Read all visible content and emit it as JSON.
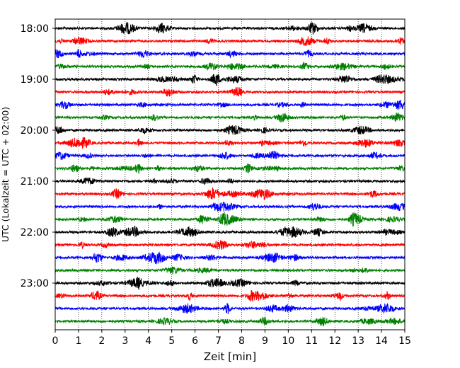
{
  "chart_data": {
    "type": "line",
    "title": "",
    "xlabel": "Zeit  [min]",
    "ylabel": "UTC (Lokalzeit = UTC + 02:00)",
    "xlim": [
      0,
      15
    ],
    "xticks": [
      0,
      1,
      2,
      3,
      4,
      5,
      6,
      7,
      8,
      9,
      10,
      11,
      12,
      13,
      14,
      15
    ],
    "ytick_labels": [
      "18:00",
      "19:00",
      "20:00",
      "21:00",
      "22:00",
      "23:00"
    ],
    "grid": "vertical dotted",
    "rows_per_hour": 4,
    "minutes_per_row": 15,
    "series": [
      {
        "label": "18:00",
        "color": "#000000"
      },
      {
        "label": "18:15",
        "color": "#ff0000"
      },
      {
        "label": "18:30",
        "color": "#0000ff"
      },
      {
        "label": "18:45",
        "color": "#008000"
      },
      {
        "label": "19:00",
        "color": "#000000"
      },
      {
        "label": "19:15",
        "color": "#ff0000"
      },
      {
        "label": "19:30",
        "color": "#0000ff"
      },
      {
        "label": "19:45",
        "color": "#008000"
      },
      {
        "label": "20:00",
        "color": "#000000"
      },
      {
        "label": "20:15",
        "color": "#ff0000"
      },
      {
        "label": "20:30",
        "color": "#0000ff"
      },
      {
        "label": "20:45",
        "color": "#008000"
      },
      {
        "label": "21:00",
        "color": "#000000"
      },
      {
        "label": "21:15",
        "color": "#ff0000"
      },
      {
        "label": "21:30",
        "color": "#0000ff"
      },
      {
        "label": "21:45",
        "color": "#008000"
      },
      {
        "label": "22:00",
        "color": "#000000"
      },
      {
        "label": "22:15",
        "color": "#ff0000"
      },
      {
        "label": "22:30",
        "color": "#0000ff"
      },
      {
        "label": "22:45",
        "color": "#008000"
      },
      {
        "label": "23:00",
        "color": "#000000"
      },
      {
        "label": "23:15",
        "color": "#ff0000"
      },
      {
        "label": "23:30",
        "color": "#0000ff"
      },
      {
        "label": "23:45",
        "color": "#008000"
      }
    ]
  }
}
